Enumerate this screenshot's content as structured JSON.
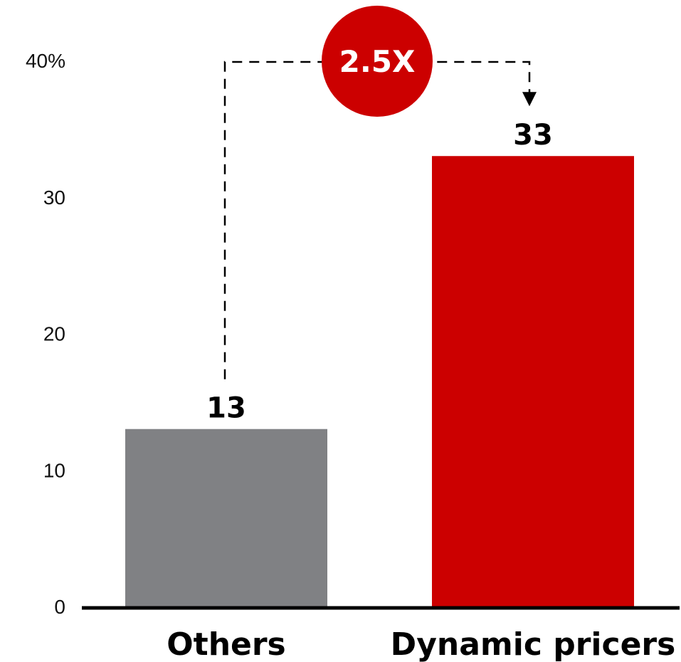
{
  "chart_data": {
    "type": "bar",
    "categories": [
      "Others",
      "Dynamic pricers"
    ],
    "values": [
      13,
      33
    ],
    "value_labels": [
      "13",
      "33"
    ],
    "ylim": [
      0,
      40
    ],
    "y_ticks": [
      0,
      10,
      20,
      30,
      40
    ],
    "y_tick_labels": [
      "0",
      "10",
      "20",
      "30",
      "40%"
    ],
    "grid": false,
    "bar_colors": [
      "#808184",
      "#CC0000"
    ],
    "annotation": {
      "text": "2.5X",
      "from_category": "Others",
      "to_category": "Dynamic pricers",
      "badge_color": "#CC0000"
    }
  }
}
